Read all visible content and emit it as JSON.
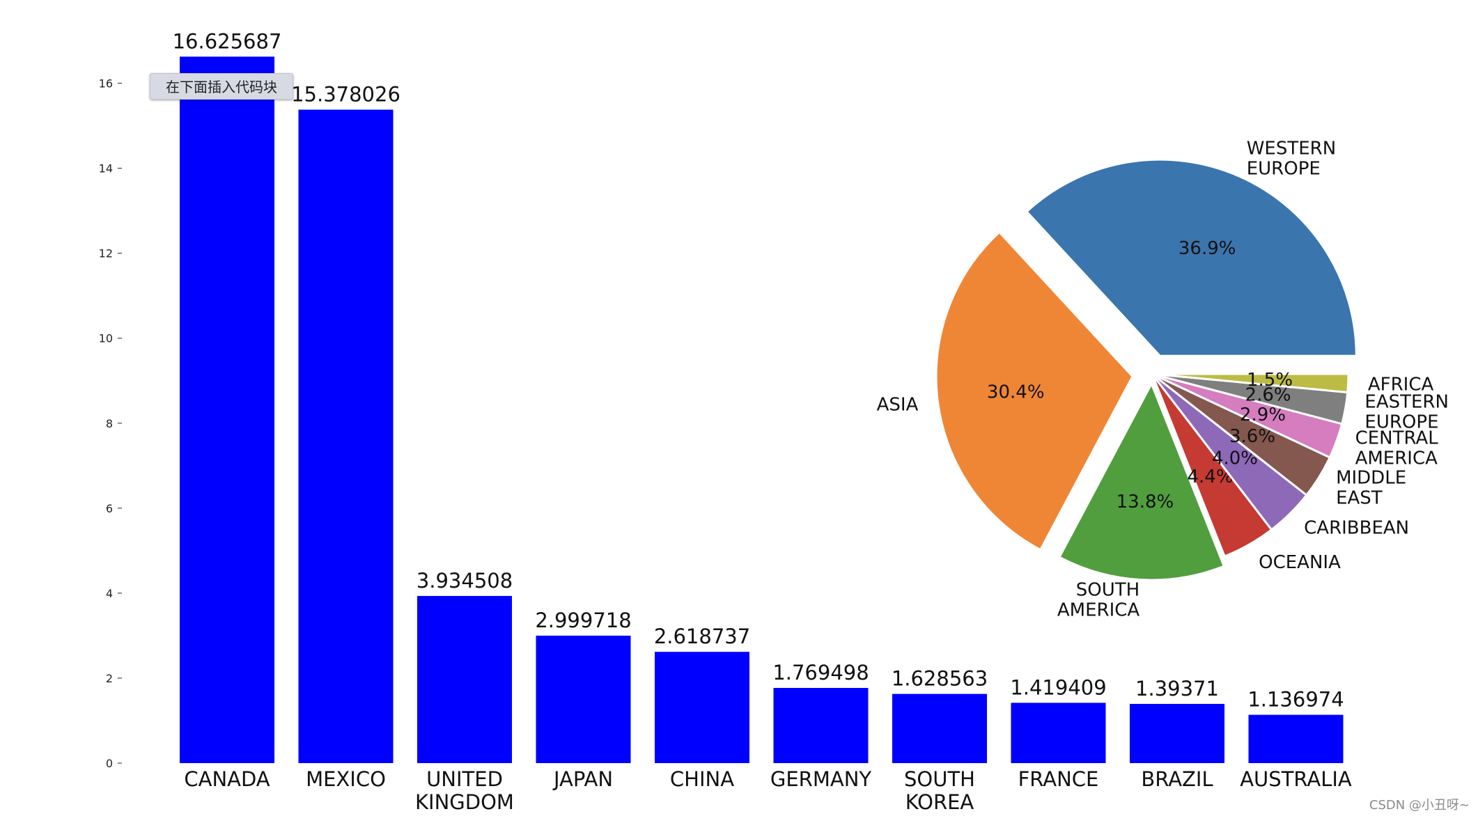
{
  "chart_data": [
    {
      "type": "bar",
      "categories": [
        "CANADA",
        "MEXICO",
        "UNITED\nKINGDOM",
        "JAPAN",
        "CHINA",
        "GERMANY",
        "SOUTH\nKOREA",
        "FRANCE",
        "BRAZIL",
        "AUSTRALIA"
      ],
      "values": [
        16.625687,
        15.378026,
        3.934508,
        2.999718,
        2.618737,
        1.769498,
        1.628563,
        1.419409,
        1.39371,
        1.136974
      ],
      "value_labels": [
        "16.625687",
        "15.378026",
        "3.934508",
        "2.999718",
        "2.618737",
        "1.769498",
        "1.628563",
        "1.419409",
        "1.39371",
        "1.136974"
      ],
      "yticks": [
        0,
        2,
        4,
        6,
        8,
        10,
        12,
        14,
        16
      ],
      "ylim": [
        0,
        17.5
      ],
      "bar_color": "#0000ff",
      "grid": false
    },
    {
      "type": "pie",
      "labels": [
        "WESTERN\nEUROPE",
        "ASIA",
        "SOUTH\nAMERICA",
        "OCEANIA",
        "CARIBBEAN",
        "MIDDLE\nEAST",
        "CENTRAL\nAMERICA",
        "EASTERN\nEUROPE",
        "AFRICA"
      ],
      "values": [
        36.9,
        30.4,
        13.8,
        4.4,
        4.0,
        3.6,
        2.9,
        2.6,
        1.5
      ],
      "pct_labels": [
        "36.9%",
        "30.4%",
        "13.8%",
        "4.4%",
        "4.0%",
        "3.6%",
        "2.9%",
        "2.6%",
        "1.5%"
      ],
      "explode": [
        0.1,
        0.1,
        0.05,
        0,
        0,
        0,
        0,
        0,
        0
      ],
      "colors": [
        "#3a75ae",
        "#ef8636",
        "#519e3e",
        "#c53a32",
        "#8d69b8",
        "#84584e",
        "#d57dbf",
        "#7f7f7f",
        "#bcbc45"
      ],
      "start_angle": 0
    }
  ],
  "tooltip": "在下面插入代码块",
  "watermark": "CSDN @小丑呀~"
}
